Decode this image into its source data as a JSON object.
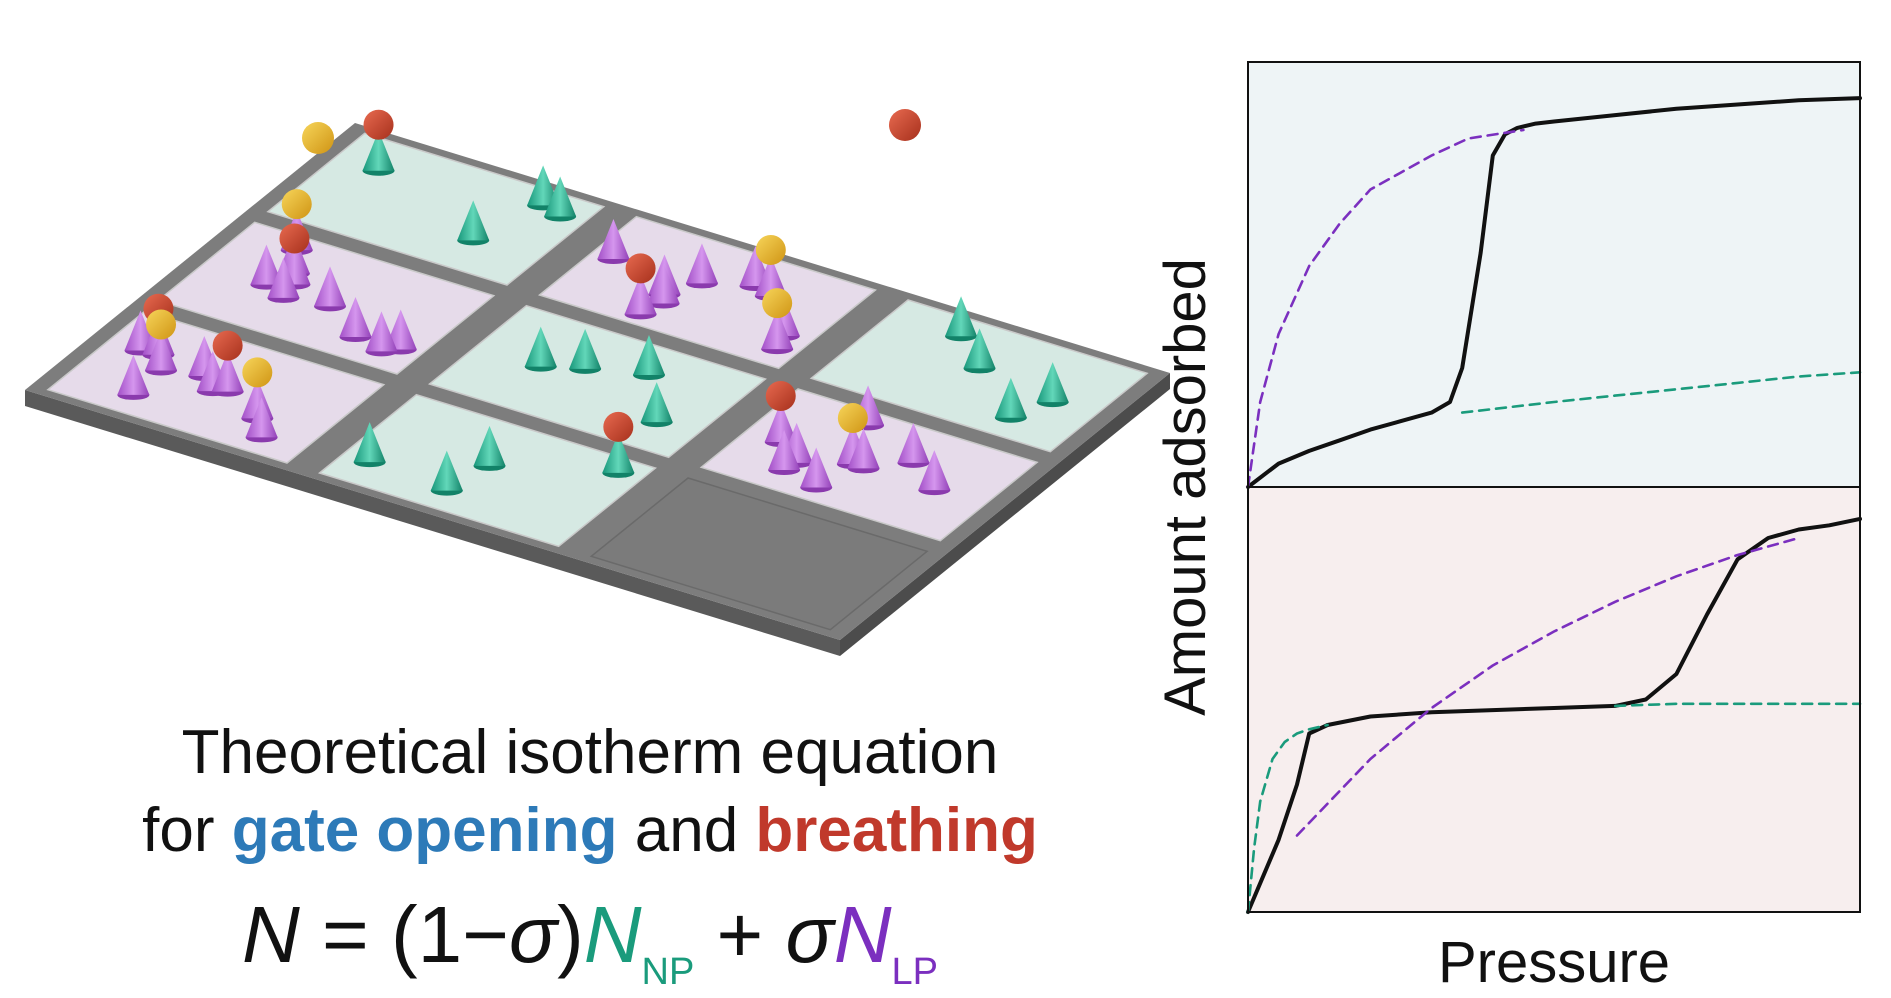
{
  "caption": {
    "line1": "Theoretical isotherm equation",
    "line2_prefix": "for ",
    "gate_opening": "gate opening",
    "line2_mid": " and ",
    "breathing": "breathing"
  },
  "equation": {
    "n": "N",
    "eq": " = (1−",
    "sigma": "σ",
    "close": ")",
    "n_np": "N",
    "np_sub": "NP",
    "plus": " + ",
    "sigma2": "σ",
    "n_lp": "N",
    "lp_sub": "LP"
  },
  "colors": {
    "np_green": "#1a9b7c",
    "lp_purple": "#7b2fbf",
    "gate_blue": "#2d7ab8",
    "breathing_red": "#c0392b",
    "top_panel_bg": "#eef4f6",
    "bottom_panel_bg": "#f7eeee",
    "np_tile": "#d6e9e3",
    "lp_tile": "#e6dbea",
    "empty_tile": "#7b7b7b",
    "frame": "#7d7d7d",
    "gas_yellow": "#e8b52a",
    "gas_red": "#c9442e"
  },
  "chart_data": {
    "type": "line",
    "xlabel": "Pressure",
    "ylabel": "Amount adsorbed",
    "panels": [
      {
        "name": "gate opening",
        "series": [
          {
            "style": "solid-black",
            "x": [
              0,
              0.05,
              0.1,
              0.15,
              0.2,
              0.25,
              0.3,
              0.33,
              0.35,
              0.38,
              0.4,
              0.42,
              0.44,
              0.47,
              0.5,
              0.6,
              0.7,
              0.8,
              0.9,
              1.0
            ],
            "y": [
              0,
              0.055,
              0.085,
              0.11,
              0.135,
              0.155,
              0.175,
              0.2,
              0.28,
              0.55,
              0.78,
              0.83,
              0.845,
              0.855,
              0.86,
              0.875,
              0.89,
              0.9,
              0.91,
              0.915
            ]
          },
          {
            "style": "dashed-purple",
            "x": [
              0,
              0.02,
              0.05,
              0.1,
              0.15,
              0.2,
              0.25,
              0.3,
              0.36,
              0.45
            ],
            "y": [
              0,
              0.2,
              0.36,
              0.52,
              0.62,
              0.7,
              0.74,
              0.78,
              0.82,
              0.84
            ]
          },
          {
            "style": "dashed-green",
            "x": [
              0.35,
              0.5,
              0.6,
              0.7,
              0.8,
              0.9,
              1.0
            ],
            "y": [
              0.175,
              0.2,
              0.215,
              0.23,
              0.245,
              0.26,
              0.27
            ]
          }
        ]
      },
      {
        "name": "breathing",
        "series": [
          {
            "style": "solid-black",
            "x": [
              0,
              0.05,
              0.08,
              0.1,
              0.13,
              0.2,
              0.3,
              0.4,
              0.5,
              0.6,
              0.65,
              0.7,
              0.75,
              0.8,
              0.85,
              0.9,
              0.95,
              1.0
            ],
            "y": [
              0,
              0.17,
              0.3,
              0.42,
              0.44,
              0.46,
              0.47,
              0.475,
              0.48,
              0.485,
              0.5,
              0.56,
              0.7,
              0.83,
              0.88,
              0.9,
              0.91,
              0.925
            ]
          },
          {
            "style": "dashed-purple",
            "x": [
              0.08,
              0.2,
              0.3,
              0.4,
              0.5,
              0.6,
              0.7,
              0.8,
              0.9
            ],
            "y": [
              0.18,
              0.36,
              0.48,
              0.58,
              0.66,
              0.73,
              0.79,
              0.84,
              0.88
            ]
          },
          {
            "style": "dashed-green",
            "x": [
              0,
              0.01,
              0.02,
              0.04,
              0.06,
              0.08,
              0.1,
              0.13
            ],
            "y": [
              0,
              0.15,
              0.26,
              0.36,
              0.4,
              0.42,
              0.43,
              0.44
            ]
          },
          {
            "style": "dashed-green",
            "x": [
              0.6,
              0.7,
              0.8,
              0.9,
              1.0
            ],
            "y": [
              0.485,
              0.49,
              0.49,
              0.49,
              0.49
            ]
          }
        ]
      }
    ]
  }
}
